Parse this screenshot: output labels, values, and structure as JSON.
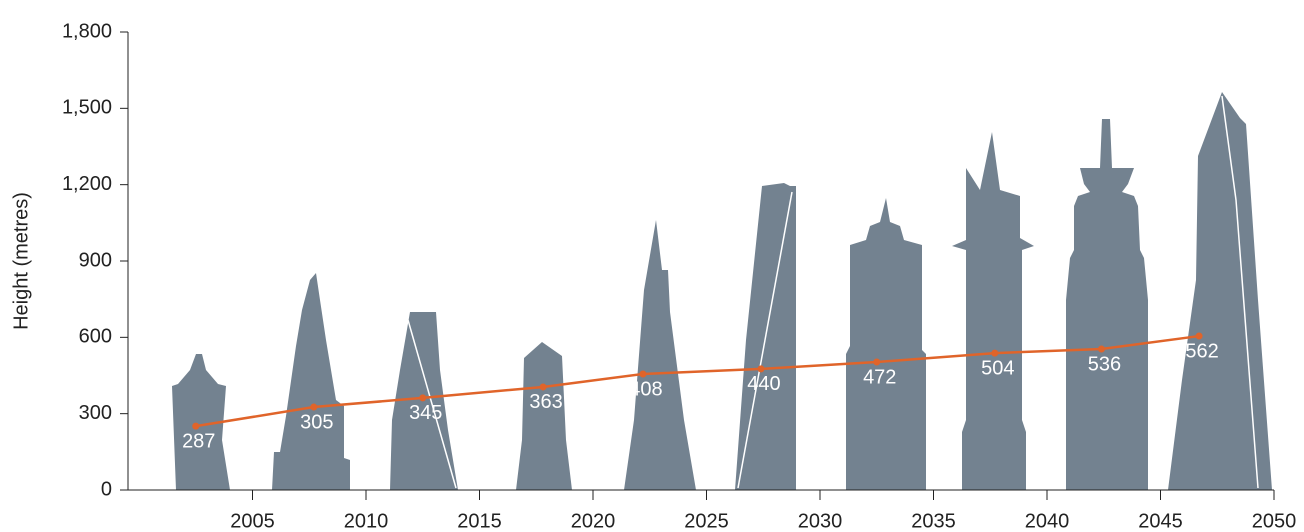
{
  "chart_data": {
    "type": "line",
    "y_label": "Height (metres)",
    "x": [
      2002.5,
      2007.7,
      2012.5,
      2017.8,
      2022.2,
      2027.4,
      2032.5,
      2037.7,
      2042.4,
      2046.7
    ],
    "series": [
      {
        "color": "#e0642a",
        "values": [
          251,
          326,
          362,
          405,
          456,
          476,
          503,
          538,
          554,
          605
        ]
      }
    ],
    "annotations": [
      "287",
      "305",
      "345",
      "363",
      "408",
      "440",
      "472",
      "504",
      "536",
      "562"
    ],
    "xlim": [
      2000,
      2050
    ],
    "xticks": [
      2005,
      2010,
      2015,
      2020,
      2025,
      2030,
      2035,
      2040,
      2045,
      2050
    ],
    "ylim": [
      0,
      1800
    ],
    "yticks": [
      0,
      300,
      600,
      900,
      {
        "value": 1200,
        "label": "1,200"
      },
      {
        "value": 1500,
        "label": "1,500"
      },
      {
        "value": 1800,
        "label": "1,800"
      }
    ]
  }
}
